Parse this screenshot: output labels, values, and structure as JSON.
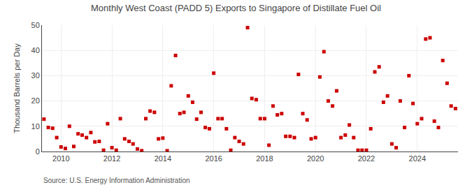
{
  "chart_data": {
    "type": "scatter",
    "title": "Monthly West Coast (PADD 5) Exports to Singapore of Distillate Fuel Oil",
    "ylabel": "Thousand Barrels per Day",
    "annotations": [
      "Source: U.S. Energy Information Administration"
    ],
    "color": "#cc0000",
    "marker": "square",
    "grid": true,
    "xlim": [
      2009.25,
      2025.6
    ],
    "xticks": [
      2010,
      2012,
      2014,
      2016,
      2018,
      2020,
      2022,
      2024
    ],
    "ylim": [
      0,
      50
    ],
    "yticks": [
      0,
      10,
      20,
      30,
      40,
      50
    ],
    "x": [
      2009.33,
      2009.5,
      2009.67,
      2009.83,
      2010.0,
      2010.17,
      2010.33,
      2010.5,
      2010.67,
      2010.83,
      2011.0,
      2011.17,
      2011.33,
      2011.5,
      2011.67,
      2011.83,
      2012.0,
      2012.17,
      2012.33,
      2012.5,
      2012.67,
      2012.83,
      2013.0,
      2013.17,
      2013.33,
      2013.5,
      2013.67,
      2013.83,
      2014.0,
      2014.17,
      2014.33,
      2014.5,
      2014.67,
      2014.83,
      2015.0,
      2015.17,
      2015.33,
      2015.5,
      2015.67,
      2015.83,
      2016.0,
      2016.17,
      2016.33,
      2016.5,
      2016.67,
      2016.83,
      2017.0,
      2017.17,
      2017.33,
      2017.5,
      2017.67,
      2017.83,
      2018.0,
      2018.17,
      2018.33,
      2018.5,
      2018.67,
      2018.83,
      2019.0,
      2019.17,
      2019.33,
      2019.5,
      2019.67,
      2019.83,
      2020.0,
      2020.17,
      2020.33,
      2020.5,
      2020.67,
      2020.83,
      2021.0,
      2021.17,
      2021.33,
      2021.5,
      2021.67,
      2021.83,
      2022.0,
      2022.17,
      2022.33,
      2022.5,
      2022.67,
      2022.83,
      2023.0,
      2023.17,
      2023.33,
      2023.5,
      2023.67,
      2023.83,
      2024.0,
      2024.17,
      2024.33,
      2024.5,
      2024.67,
      2024.83,
      2025.0,
      2025.17,
      2025.33,
      2025.5
    ],
    "values": [
      12.8,
      9.5,
      9.2,
      5.5,
      1.8,
      1.2,
      10.0,
      2.0,
      7.0,
      6.5,
      5.5,
      7.5,
      3.8,
      4.0,
      0.5,
      11.0,
      1.5,
      0.5,
      13.0,
      5.0,
      4.0,
      3.0,
      1.0,
      0.3,
      13.0,
      16.0,
      15.5,
      5.0,
      5.3,
      0.3,
      26.0,
      38.0,
      15.0,
      15.5,
      22.0,
      19.5,
      12.8,
      15.5,
      9.5,
      9.0,
      31.0,
      13.0,
      13.0,
      9.0,
      0.5,
      5.5,
      4.0,
      3.0,
      49.0,
      21.0,
      20.5,
      13.0,
      13.0,
      2.5,
      18.0,
      14.5,
      15.0,
      6.0,
      6.0,
      5.5,
      30.5,
      15.0,
      12.5,
      5.0,
      5.5,
      29.5,
      39.5,
      20.0,
      18.0,
      24.0,
      5.5,
      6.5,
      10.5,
      5.5,
      0.5,
      0.5,
      0.5,
      9.0,
      31.5,
      33.5,
      19.5,
      22.0,
      3.0,
      1.5,
      20.0,
      9.5,
      30.0,
      19.0,
      11.0,
      13.0,
      44.5,
      45.0,
      12.0,
      9.5,
      36.0,
      27.0,
      18.0,
      17.0
    ]
  }
}
